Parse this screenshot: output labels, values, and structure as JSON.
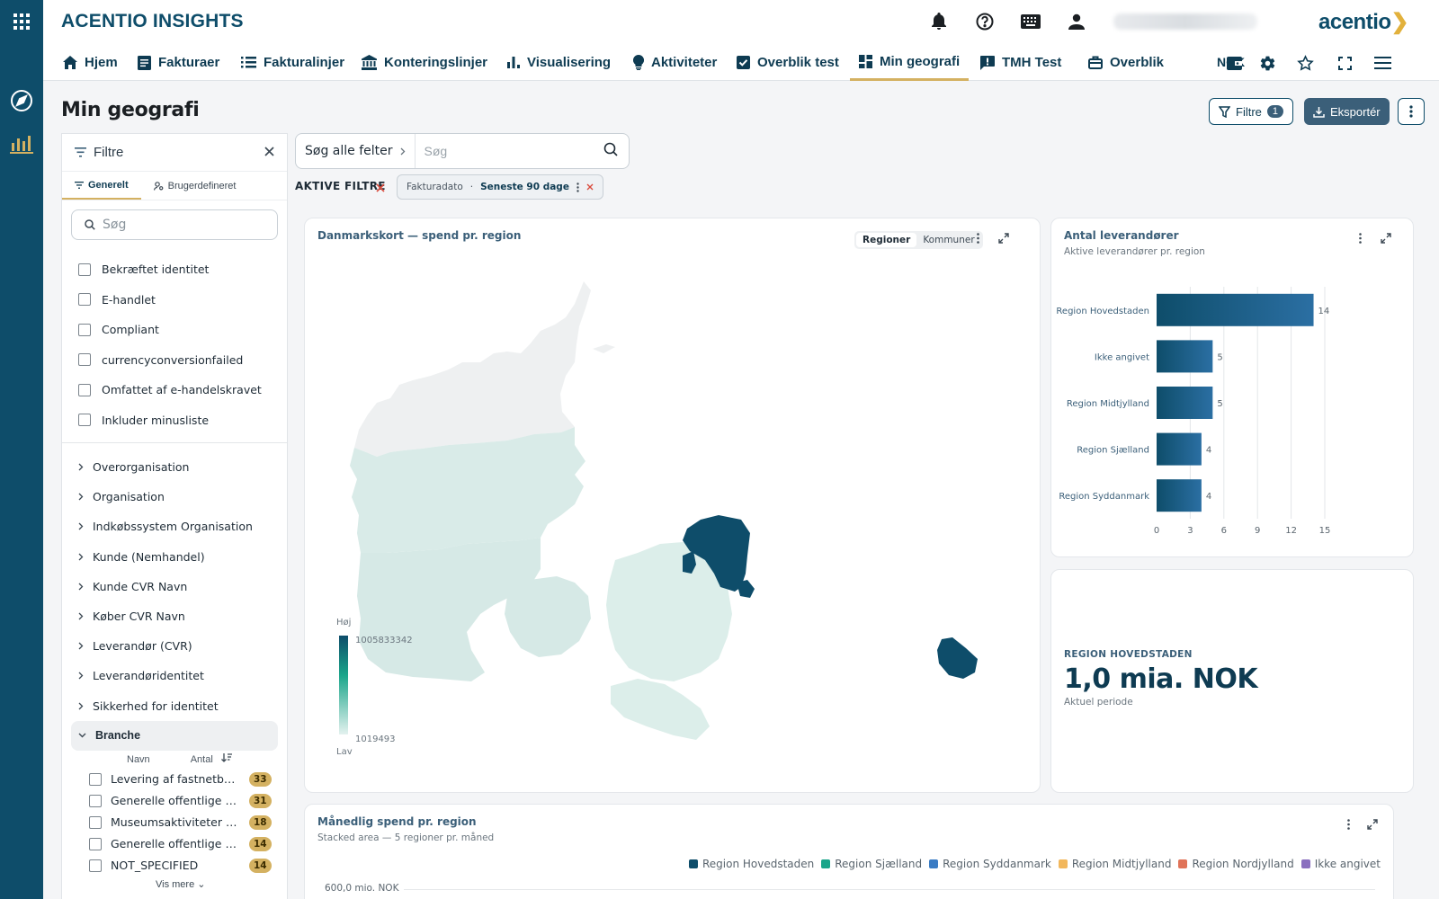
{
  "app": {
    "title": "ACENTIO INSIGHTS",
    "brand": "acentio",
    "colors": {
      "primary": "#0e4d6a",
      "accent": "#d4b161",
      "bar": "#2b6fa3"
    }
  },
  "nav": {
    "items": [
      {
        "label": "Hjem",
        "icon": "home-icon"
      },
      {
        "label": "Fakturaer",
        "icon": "invoice-icon"
      },
      {
        "label": "Fakturalinjer",
        "icon": "list-icon"
      },
      {
        "label": "Konteringslinjer",
        "icon": "bank-icon"
      },
      {
        "label": "Visualisering",
        "icon": "bar-chart-icon"
      },
      {
        "label": "Aktiviteter",
        "icon": "lightbulb-icon"
      },
      {
        "label": "Overblik test",
        "icon": "checkbox-icon"
      },
      {
        "label": "Min geografi",
        "icon": "dashboard-icon",
        "active": true
      },
      {
        "label": "TMH Test",
        "icon": "alert-icon"
      },
      {
        "label": "Overblik",
        "icon": "briefcase-icon"
      }
    ],
    "currency": "NOK"
  },
  "page": {
    "title": "Min geografi",
    "filter_button": "Filtre",
    "filter_count": "1",
    "export_button": "Eksportér"
  },
  "filters": {
    "title": "Filtre",
    "tabs": [
      "Generelt",
      "Brugerdefineret"
    ],
    "search_placeholder": "Søg",
    "checkboxes": [
      "Bekræftet identitet",
      "E-handlet",
      "Compliant",
      "currencyconversionfailed",
      "Omfattet af e-handelskravet",
      "Inkluder minusliste"
    ],
    "groups": [
      "Overorganisation",
      "Organisation",
      "Indkøbssystem Organisation",
      "Kunde (Nemhandel)",
      "Kunde CVR Navn",
      "Køber CVR Navn",
      "Leverandør (CVR)",
      "Leverandøridentitet",
      "Sikkerhed for identitet"
    ],
    "open_group": "Branche",
    "branche_columns": [
      "Navn",
      "Antal"
    ],
    "branche_rows": [
      {
        "name": "Levering af fastnetbaseret, trådløs og satellitbaseret telekommunikation",
        "count": "33"
      },
      {
        "name": "Generelle offentlige forvaltningsopgaver",
        "count": "31"
      },
      {
        "name": "Museumsaktiviteter og aktiviteter i forbindelse med kulturarv",
        "count": "18"
      },
      {
        "name": "Generelle offentlige tjenester",
        "count": "14"
      },
      {
        "name": "NOT_SPECIFIED",
        "count": "14"
      }
    ],
    "show_more": "Vis mere"
  },
  "search": {
    "scope": "Søg alle felter",
    "placeholder": "Søg"
  },
  "active_filters": {
    "label": "AKTIVE FILTRE",
    "chip_field": "Fakturadato",
    "chip_value": "Seneste 90 dage"
  },
  "map_card": {
    "title": "Danmarkskort — spend pr. region",
    "toggle": [
      "Regioner",
      "Kommuner"
    ],
    "legend_high": "Høj",
    "legend_low": "Lav",
    "legend_max": "1005833342",
    "legend_min": "1019493",
    "highlighted_region": "Region Hovedstaden"
  },
  "suppliers_card": {
    "title": "Antal leverandører",
    "subtitle": "Aktive leverandører pr. region"
  },
  "kpi_card": {
    "label": "REGION HOVEDSTADEN",
    "value": "1,0 mia. NOK",
    "sub": "Aktuel periode"
  },
  "monthly_card": {
    "title": "Månedlig spend pr. region",
    "subtitle": "Stacked area — 5 regioner pr. måned",
    "y_first_tick": "600,0 mio. NOK",
    "legend": [
      {
        "name": "Region Hovedstaden",
        "color": "#0e4d6a"
      },
      {
        "name": "Region Sjælland",
        "color": "#1aa58a"
      },
      {
        "name": "Region Syddanmark",
        "color": "#3a7cc4"
      },
      {
        "name": "Region Midtjylland",
        "color": "#f2b75c"
      },
      {
        "name": "Region Nordjylland",
        "color": "#e07358"
      },
      {
        "name": "Ikke angivet",
        "color": "#8a6fbf"
      }
    ]
  },
  "chart_data": {
    "type": "bar",
    "orientation": "horizontal",
    "title": "Antal leverandører",
    "subtitle": "Aktive leverandører pr. region",
    "categories": [
      "Region Hovedstaden",
      "Ikke angivet",
      "Region Midtjylland",
      "Region Sjælland",
      "Region Syddanmark"
    ],
    "values": [
      14,
      5,
      5,
      4,
      4
    ],
    "xlim": [
      0,
      15
    ],
    "xticks": [
      0,
      3,
      6,
      9,
      12,
      15
    ],
    "grid": true
  }
}
